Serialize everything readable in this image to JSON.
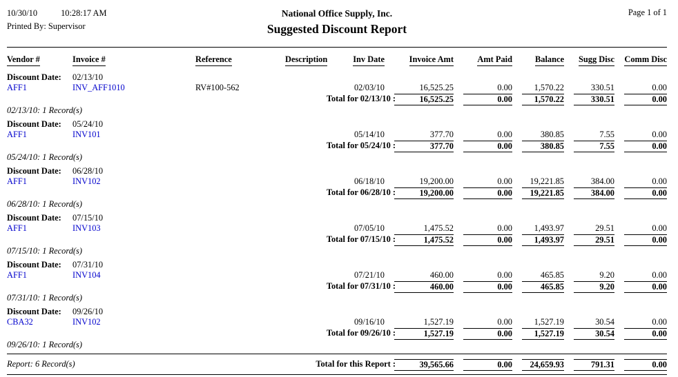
{
  "page": {
    "date": "10/30/10",
    "time": "10:28:17 AM",
    "printed_by": "Printed By: Supervisor",
    "company": "National Office Supply, Inc.",
    "title": "Suggested Discount Report",
    "page_info": "Page 1 of 1"
  },
  "columns": [
    "Vendor #",
    "Invoice #",
    "Reference",
    "Description",
    "Inv Date",
    "Invoice Amt",
    "Amt Paid",
    "Balance",
    "Sugg Disc",
    "Comm Disc"
  ],
  "colors": {
    "link": "#0000cc"
  },
  "groups": [
    {
      "discount_date_label": "Discount Date:",
      "discount_date": "02/13/10",
      "rows": [
        {
          "vendor": "AFF1",
          "invoice": "INV_AFF1010",
          "reference": "RV#100-562",
          "description": "",
          "inv_date": "02/03/10",
          "invoice_amt": "16,525.25",
          "amt_paid": "0.00",
          "balance": "1,570.22",
          "sugg_disc": "330.51",
          "comm_disc": "0.00"
        }
      ],
      "total_label": "Total for 02/13/10 :",
      "totals": {
        "invoice_amt": "16,525.25",
        "amt_paid": "0.00",
        "balance": "1,570.22",
        "sugg_disc": "330.51",
        "comm_disc": "0.00"
      },
      "record_count": "02/13/10: 1 Record(s)"
    },
    {
      "discount_date_label": "Discount Date:",
      "discount_date": "05/24/10",
      "rows": [
        {
          "vendor": "AFF1",
          "invoice": "INV101",
          "reference": "",
          "description": "",
          "inv_date": "05/14/10",
          "invoice_amt": "377.70",
          "amt_paid": "0.00",
          "balance": "380.85",
          "sugg_disc": "7.55",
          "comm_disc": "0.00"
        }
      ],
      "total_label": "Total for 05/24/10 :",
      "totals": {
        "invoice_amt": "377.70",
        "amt_paid": "0.00",
        "balance": "380.85",
        "sugg_disc": "7.55",
        "comm_disc": "0.00"
      },
      "record_count": "05/24/10: 1 Record(s)"
    },
    {
      "discount_date_label": "Discount Date:",
      "discount_date": "06/28/10",
      "rows": [
        {
          "vendor": "AFF1",
          "invoice": "INV102",
          "reference": "",
          "description": "",
          "inv_date": "06/18/10",
          "invoice_amt": "19,200.00",
          "amt_paid": "0.00",
          "balance": "19,221.85",
          "sugg_disc": "384.00",
          "comm_disc": "0.00"
        }
      ],
      "total_label": "Total for 06/28/10 :",
      "totals": {
        "invoice_amt": "19,200.00",
        "amt_paid": "0.00",
        "balance": "19,221.85",
        "sugg_disc": "384.00",
        "comm_disc": "0.00"
      },
      "record_count": "06/28/10: 1 Record(s)"
    },
    {
      "discount_date_label": "Discount Date:",
      "discount_date": "07/15/10",
      "rows": [
        {
          "vendor": "AFF1",
          "invoice": "INV103",
          "reference": "",
          "description": "",
          "inv_date": "07/05/10",
          "invoice_amt": "1,475.52",
          "amt_paid": "0.00",
          "balance": "1,493.97",
          "sugg_disc": "29.51",
          "comm_disc": "0.00"
        }
      ],
      "total_label": "Total for 07/15/10 :",
      "totals": {
        "invoice_amt": "1,475.52",
        "amt_paid": "0.00",
        "balance": "1,493.97",
        "sugg_disc": "29.51",
        "comm_disc": "0.00"
      },
      "record_count": "07/15/10: 1 Record(s)"
    },
    {
      "discount_date_label": "Discount Date:",
      "discount_date": "07/31/10",
      "rows": [
        {
          "vendor": "AFF1",
          "invoice": "INV104",
          "reference": "",
          "description": "",
          "inv_date": "07/21/10",
          "invoice_amt": "460.00",
          "amt_paid": "0.00",
          "balance": "465.85",
          "sugg_disc": "9.20",
          "comm_disc": "0.00"
        }
      ],
      "total_label": "Total for 07/31/10 :",
      "totals": {
        "invoice_amt": "460.00",
        "amt_paid": "0.00",
        "balance": "465.85",
        "sugg_disc": "9.20",
        "comm_disc": "0.00"
      },
      "record_count": "07/31/10: 1 Record(s)"
    },
    {
      "discount_date_label": "Discount Date:",
      "discount_date": "09/26/10",
      "rows": [
        {
          "vendor": "CBA32",
          "invoice": "INV102",
          "reference": "",
          "description": "",
          "inv_date": "09/16/10",
          "invoice_amt": "1,527.19",
          "amt_paid": "0.00",
          "balance": "1,527.19",
          "sugg_disc": "30.54",
          "comm_disc": "0.00"
        }
      ],
      "total_label": "Total for 09/26/10 :",
      "totals": {
        "invoice_amt": "1,527.19",
        "amt_paid": "0.00",
        "balance": "1,527.19",
        "sugg_disc": "30.54",
        "comm_disc": "0.00"
      },
      "record_count": "09/26/10: 1 Record(s)"
    }
  ],
  "report": {
    "record_count": "Report: 6 Record(s)",
    "total_label": "Total for this Report :",
    "totals": {
      "invoice_amt": "39,565.66",
      "amt_paid": "0.00",
      "balance": "24,659.93",
      "sugg_disc": "791.31",
      "comm_disc": "0.00"
    }
  }
}
